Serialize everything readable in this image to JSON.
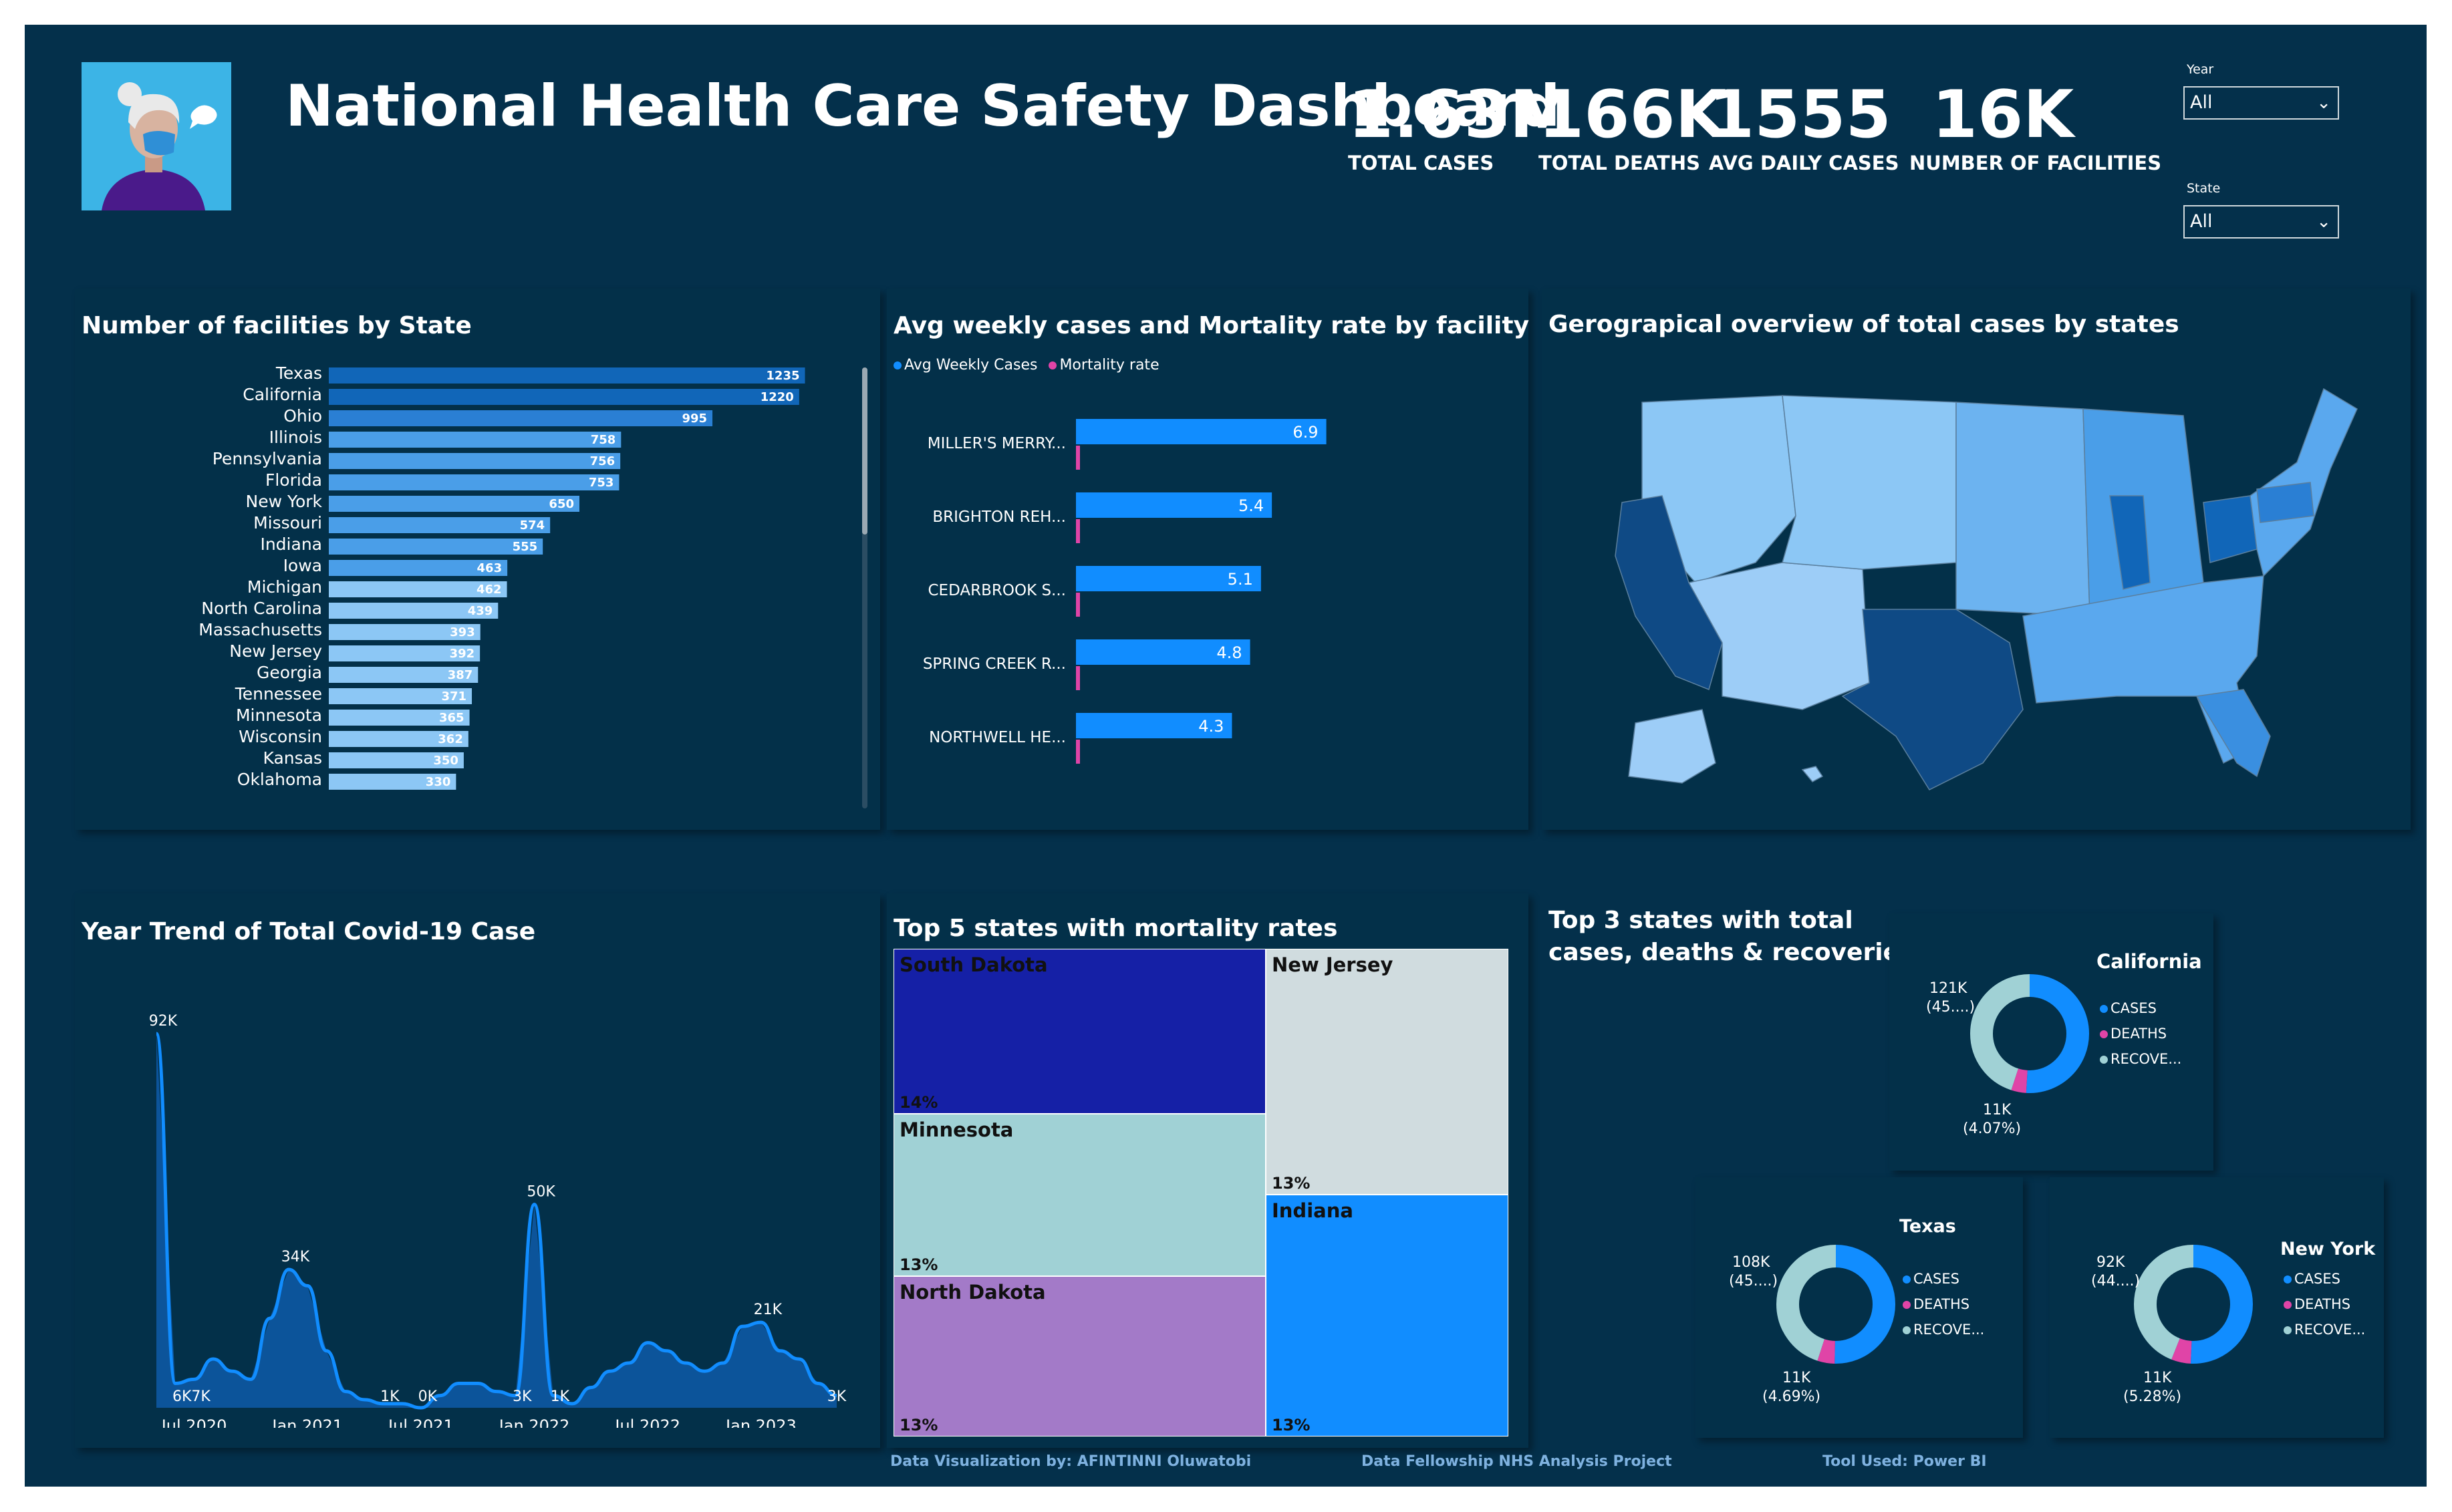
{
  "header": {
    "title": "National Health Care Safety Dashboard",
    "kpis": [
      {
        "value": "1.63M",
        "label": "TOTAL CASES"
      },
      {
        "value": "166K",
        "label": "TOTAL DEATHS"
      },
      {
        "value": "1555",
        "label": "AVG DAILY CASES"
      },
      {
        "value": "16K",
        "label": "NUMBER OF FACILITIES"
      }
    ]
  },
  "slicers": {
    "year": {
      "label": "Year",
      "value": "All"
    },
    "state": {
      "label": "State",
      "value": "All"
    }
  },
  "colors": {
    "background": "#04304b",
    "bar_dark": "#1166b8",
    "bar_light": "#8cc7f5",
    "weekly": "#118dff",
    "mortality": "#e044a7",
    "recovered": "#a0d1d5"
  },
  "facilities_chart": {
    "title": "Number of facilities by State",
    "chart_data": {
      "type": "bar",
      "categories": [
        "Texas",
        "California",
        "Ohio",
        "Illinois",
        "Pennsylvania",
        "Florida",
        "New York",
        "Missouri",
        "Indiana",
        "Iowa",
        "Michigan",
        "North Carolina",
        "Massachusetts",
        "New Jersey",
        "Georgia",
        "Tennessee",
        "Minnesota",
        "Wisconsin",
        "Kansas",
        "Oklahoma"
      ],
      "values": [
        1235,
        1220,
        995,
        758,
        756,
        753,
        650,
        574,
        555,
        463,
        462,
        439,
        393,
        392,
        387,
        371,
        365,
        362,
        350,
        330
      ]
    }
  },
  "weekly_chart": {
    "title": "Avg weekly cases and Mortality rate by facility",
    "legend": [
      "Avg Weekly Cases",
      "Mortality rate"
    ],
    "chart_data": {
      "type": "bar",
      "categories": [
        "MILLER'S MERRY...",
        "BRIGHTON REH...",
        "CEDARBROOK S...",
        "SPRING CREEK R...",
        "NORTHWELL HE..."
      ],
      "series": [
        {
          "name": "Avg Weekly Cases",
          "values": [
            6.9,
            5.4,
            5.1,
            4.8,
            4.3
          ]
        },
        {
          "name": "Mortality rate",
          "values": [
            0.1,
            0.1,
            0.1,
            0.1,
            0.1
          ]
        }
      ]
    }
  },
  "map_panel": {
    "title": "Gerograpical overview of total cases by states"
  },
  "trend_chart": {
    "title": "Year Trend of Total Covid-19 Case",
    "x_ticks": [
      "Jul 2020",
      "Jan 2021",
      "Jul 2021",
      "Jan 2022",
      "Jul 2022",
      "Jan 2023"
    ],
    "labels": [
      "92K",
      "6K",
      "7K",
      "34K",
      "1K",
      "0K",
      "3K",
      "50K",
      "1K",
      "21K",
      "3K"
    ],
    "chart_data": {
      "type": "area",
      "x": [
        "2020-05",
        "2020-06",
        "2020-07",
        "2020-08",
        "2020-09",
        "2020-10",
        "2020-11",
        "2020-12",
        "2021-01",
        "2021-02",
        "2021-03",
        "2021-04",
        "2021-05",
        "2021-06",
        "2021-07",
        "2021-08",
        "2021-09",
        "2021-10",
        "2021-11",
        "2021-12",
        "2022-01",
        "2022-02",
        "2022-03",
        "2022-04",
        "2022-05",
        "2022-06",
        "2022-07",
        "2022-08",
        "2022-09",
        "2022-10",
        "2022-11",
        "2022-12",
        "2023-01",
        "2023-02",
        "2023-03",
        "2023-04",
        "2023-05"
      ],
      "y": [
        92,
        6,
        7,
        12,
        9,
        7,
        22,
        34,
        30,
        14,
        4,
        2,
        1,
        1,
        0,
        3,
        6,
        6,
        4,
        3,
        50,
        3,
        1,
        5,
        9,
        11,
        16,
        14,
        11,
        9,
        11,
        20,
        21,
        14,
        12,
        6,
        3
      ]
    }
  },
  "treemap": {
    "title": "Top 5 states with mortality rates",
    "chart_data": {
      "type": "treemap",
      "items": [
        {
          "name": "South Dakota",
          "value": "14%",
          "color": "#1520a6"
        },
        {
          "name": "New Jersey",
          "value": "13%",
          "color": "#d0dcdf"
        },
        {
          "name": "Minnesota",
          "value": "13%",
          "color": "#a0d1d5"
        },
        {
          "name": "Indiana",
          "value": "13%",
          "color": "#118dff"
        },
        {
          "name": "North Dakota",
          "value": "13%",
          "color": "#a37ac8"
        }
      ]
    }
  },
  "donuts": {
    "title_line1": "Top 3 states with total",
    "title_line2": "cases, deaths & recoveries",
    "legend": [
      "CASES",
      "DEATHS",
      "RECOVE..."
    ],
    "charts": [
      {
        "state": "California",
        "top_label": "121K",
        "top_sub": "(45....)",
        "bottom_label": "11K",
        "bottom_sub": "(4.07%)",
        "chart_data": {
          "type": "pie",
          "categories": [
            "CASES",
            "DEATHS",
            "RECOVERIES"
          ],
          "values": [
            50.9,
            4.07,
            45.0
          ]
        }
      },
      {
        "state": "Texas",
        "top_label": "108K",
        "top_sub": "(45....)",
        "bottom_label": "11K",
        "bottom_sub": "(4.69%)",
        "chart_data": {
          "type": "pie",
          "categories": [
            "CASES",
            "DEATHS",
            "RECOVERIES"
          ],
          "values": [
            50.3,
            4.69,
            45.0
          ]
        }
      },
      {
        "state": "New York",
        "top_label": "92K",
        "top_sub": "(44....)",
        "bottom_label": "11K",
        "bottom_sub": "(5.28%)",
        "chart_data": {
          "type": "pie",
          "categories": [
            "CASES",
            "DEATHS",
            "RECOVERIES"
          ],
          "values": [
            50.7,
            5.28,
            44.0
          ]
        }
      }
    ]
  },
  "footer": {
    "credit": "Data Visualization by: AFINTINNI Oluwatobi",
    "project": "Data Fellowship NHS Analysis Project",
    "tool": "Tool Used: Power BI"
  }
}
